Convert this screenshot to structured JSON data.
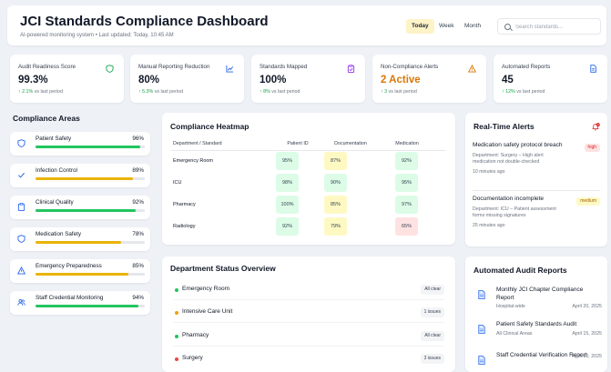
{
  "header": {
    "title": "JCI Standards Compliance Dashboard",
    "subtitle": "AI-powered monitoring system • Last updated: Today, 10:45 AM",
    "periods": [
      "Today",
      "Week",
      "Month"
    ],
    "active_period": "Today",
    "search_placeholder": "Search standards..."
  },
  "kpis": [
    {
      "label": "Audit Readiness Score",
      "value": "99.3%",
      "trend_arrow": "↑",
      "trend_value": "2.1%",
      "trend_text": "vs last period",
      "icon": "shield-icon",
      "color": "#16a34a"
    },
    {
      "label": "Manual Reporting Reduction",
      "value": "80%",
      "trend_arrow": "↑",
      "trend_value": "5.3%",
      "trend_text": "vs last period",
      "icon": "chart-icon",
      "color": "#2563eb"
    },
    {
      "label": "Standards Mapped",
      "value": "100%",
      "trend_arrow": "↑",
      "trend_value": "8%",
      "trend_text": "vs last period",
      "icon": "clipboard-icon",
      "color": "#9333ea"
    },
    {
      "label": "Non-Compliance Alerts",
      "value": "2 Active",
      "trend_arrow": "↑",
      "trend_value": "3",
      "trend_text": "vs last period",
      "icon": "warning-icon",
      "color": "#d97706"
    },
    {
      "label": "Automated Reports",
      "value": "45",
      "trend_arrow": "↑",
      "trend_value": "12%",
      "trend_text": "vs last period",
      "icon": "document-icon",
      "color": "#2563eb"
    }
  ],
  "compliance_areas": {
    "title": "Compliance Areas",
    "items": [
      {
        "name": "Patient Safety",
        "pct_label": "96%",
        "level": 96,
        "icon": "shield-icon",
        "color": "#22c55e"
      },
      {
        "name": "Infection Control",
        "pct_label": "89%",
        "level": 89,
        "icon": "check-icon",
        "color": "#eab308"
      },
      {
        "name": "Clinical Quality",
        "pct_label": "92%",
        "level": 92,
        "icon": "clipboard-icon",
        "color": "#22c55e"
      },
      {
        "name": "Medication Safety",
        "pct_label": "78%",
        "level": 78,
        "icon": "shield-icon",
        "color": "#eab308"
      },
      {
        "name": "Emergency Preparedness",
        "pct_label": "85%",
        "level": 85,
        "icon": "warning-icon",
        "color": "#eab308"
      },
      {
        "name": "Staff Credential Monitoring",
        "pct_label": "94%",
        "level": 94,
        "icon": "users-icon",
        "color": "#22c55e"
      }
    ]
  },
  "heatmap": {
    "title": "Compliance Heatmap",
    "columns": [
      "Department / Standard",
      "Patient ID",
      "Documentation",
      "Medication"
    ],
    "rows": [
      {
        "name": "Emergency Room",
        "cells": [
          "95%",
          "87%",
          "92%"
        ]
      },
      {
        "name": "ICU",
        "cells": [
          "98%",
          "90%",
          "95%"
        ]
      },
      {
        "name": "Pharmacy",
        "cells": [
          "100%",
          "85%",
          "97%"
        ]
      },
      {
        "name": "Radiology",
        "cells": [
          "92%",
          "79%",
          "65%"
        ]
      }
    ],
    "colors": {
      "green": "#dcfce7",
      "yellow": "#fef9c3",
      "red": "#fee2e2"
    }
  },
  "department_status": {
    "title": "Department Status Overview",
    "items": [
      {
        "name": "Emergency Room",
        "badge": "All clear",
        "color": "#22c55e"
      },
      {
        "name": "Intensive Care Unit",
        "badge": "1 issues",
        "color": "#f59e0b"
      },
      {
        "name": "Pharmacy",
        "badge": "All clear",
        "color": "#22c55e"
      },
      {
        "name": "Surgery",
        "badge": "3 issues",
        "color": "#ef4444"
      }
    ]
  },
  "alerts": {
    "title": "Real-Time Alerts",
    "bell_count": "2",
    "items": [
      {
        "title": "Medication safety protocol breach",
        "description": "Department: Surgery – High alert medication not double-checked",
        "time": "10 minutes ago",
        "severity": "high",
        "badge_bg": "#fee2e2",
        "badge_color": "#dc2626"
      },
      {
        "title": "Documentation incomplete",
        "description": "Department: ICU – Patient assessment forms missing signatures",
        "time": "25 minutes ago",
        "severity": "medium",
        "badge_bg": "#fef9c3",
        "badge_color": "#a16207"
      }
    ]
  },
  "reports": {
    "title": "Automated Audit Reports",
    "items": [
      {
        "title": "Monthly JCI Chapter Compliance Report",
        "scope": "Hospital-wide",
        "date": "April 20, 2025"
      },
      {
        "title": "Patient Safety Standards Audit",
        "scope": "All Clinical Areas",
        "date": "April 15, 2025"
      },
      {
        "title": "Staff Credential Verification Report",
        "scope": "",
        "date": "April 10, 2025"
      }
    ]
  }
}
